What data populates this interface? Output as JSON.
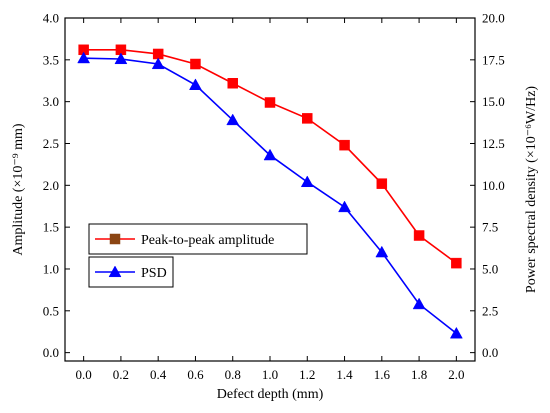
{
  "chart_data": {
    "type": "line",
    "title": "",
    "xlabel": "Defect depth (mm)",
    "ylabel": "Amplitude (×10⁻⁹ mm)",
    "y2label": "Power spectral density (×10⁻⁶W/Hz)",
    "xlim": [
      -0.1,
      2.1
    ],
    "ylim": [
      -0.1,
      4.0
    ],
    "y2lim": [
      -0.5,
      20.0
    ],
    "x_ticks": [
      "0.0",
      "0.2",
      "0.4",
      "0.6",
      "0.8",
      "1.0",
      "1.2",
      "1.4",
      "1.6",
      "1.8",
      "2.0"
    ],
    "y_ticks": [
      "0.0",
      "0.5",
      "1.0",
      "1.5",
      "2.0",
      "2.5",
      "3.0",
      "3.5",
      "4.0"
    ],
    "y2_ticks": [
      "0.0",
      "2.5",
      "5.0",
      "7.5",
      "10.0",
      "12.5",
      "15.0",
      "17.5",
      "20.0"
    ],
    "x": [
      0.0,
      0.2,
      0.4,
      0.6,
      0.8,
      1.0,
      1.2,
      1.4,
      1.6,
      1.8,
      2.0
    ],
    "grid": false,
    "legend_position": "left",
    "series": [
      {
        "name": "Peak-to-peak amplitude",
        "axis": "left",
        "marker": "square",
        "line_color": "#ff0000",
        "marker_color": "#ff0000",
        "legend_marker_color": "#8b4513",
        "values": [
          3.62,
          3.62,
          3.57,
          3.45,
          3.22,
          2.99,
          2.8,
          2.48,
          2.02,
          1.4,
          1.07
        ]
      },
      {
        "name": "PSD",
        "axis": "right",
        "marker": "triangle",
        "line_color": "#0000ff",
        "marker_color": "#0000ff",
        "legend_marker_color": "#0000ff",
        "values": [
          17.6,
          17.55,
          17.25,
          16.0,
          13.9,
          11.8,
          10.2,
          8.7,
          6.0,
          2.9,
          1.15
        ]
      }
    ]
  }
}
